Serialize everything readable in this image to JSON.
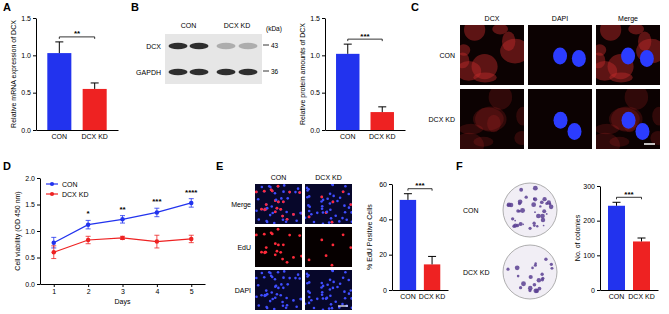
{
  "chart_data": [
    {
      "type": "bar",
      "y_label": "Relative mRNA expression of DCX",
      "categories": [
        "CON",
        "DCX KD"
      ],
      "values": [
        1.03,
        0.55
      ],
      "errors": [
        0.15,
        0.08
      ],
      "colors": [
        "#2233ee",
        "#ee2222"
      ],
      "ylim": [
        0,
        1.5
      ],
      "yticks": [
        {
          "value": 0,
          "label": "0.0"
        },
        0.5,
        {
          "value": 1,
          "label": "1.0"
        },
        1.5
      ],
      "annotations": [
        "**"
      ]
    },
    {
      "type": "bar",
      "y_label": "Relative protein amounts of DCX",
      "categories": [
        "CON",
        "DCX KD"
      ],
      "values": [
        1.02,
        0.24
      ],
      "errors": [
        0.13,
        0.07
      ],
      "colors": [
        "#2233ee",
        "#ee2222"
      ],
      "ylim": [
        0,
        1.5
      ],
      "yticks": [
        {
          "value": 0,
          "label": "0.0"
        },
        0.5,
        {
          "value": 1,
          "label": "1.0"
        },
        1.5
      ],
      "annotations": [
        "***"
      ]
    },
    {
      "type": "line",
      "x_label": "Days",
      "y_label": "Cell viability (OD 450 nm)",
      "x": [
        1,
        2,
        3,
        4,
        5
      ],
      "xlim": [
        0.6,
        5.4
      ],
      "xticks": [
        1,
        2,
        3,
        4,
        5
      ],
      "ylim": [
        0,
        2
      ],
      "yticks": [
        {
          "value": 0,
          "label": "0.0"
        },
        0.5,
        {
          "value": 1,
          "label": "1.0"
        },
        1.5,
        {
          "value": 2,
          "label": "2.0"
        }
      ],
      "legend": "upper left",
      "series": [
        {
          "name": "CON",
          "color": "#2233ee",
          "marker": "circle",
          "values": [
            0.78,
            1.12,
            1.22,
            1.35,
            1.53
          ],
          "errors": [
            0.1,
            0.08,
            0.07,
            0.08,
            0.08
          ]
        },
        {
          "name": "DCX KD",
          "color": "#ee2222",
          "marker": "circle",
          "values": [
            0.6,
            0.83,
            0.87,
            0.8,
            0.85
          ],
          "errors": [
            0.12,
            0.07,
            0.03,
            0.12,
            0.07
          ]
        }
      ],
      "annotations": [
        {
          "x": 2,
          "text": "*"
        },
        {
          "x": 3,
          "text": "**"
        },
        {
          "x": 4,
          "text": "***"
        },
        {
          "x": 5,
          "text": "****"
        }
      ]
    },
    {
      "type": "bar",
      "y_label": "% EdU Positive Cells",
      "categories": [
        "CON",
        "DCX KD"
      ],
      "values": [
        51,
        14.5
      ],
      "errors": [
        3.5,
        4.5
      ],
      "colors": [
        "#2233ee",
        "#ee2222"
      ],
      "ylim": [
        0,
        60
      ],
      "yticks": [
        0,
        20,
        40,
        60
      ],
      "annotations": [
        "***"
      ]
    },
    {
      "type": "bar",
      "y_label": "No. of colonies",
      "categories": [
        "CON",
        "DCX KD"
      ],
      "values": [
        243,
        140
      ],
      "errors": [
        10,
        10
      ],
      "colors": [
        "#2233ee",
        "#ee2222"
      ],
      "ylim": [
        0,
        300
      ],
      "yticks": [
        0,
        100,
        200,
        300
      ],
      "annotations": [
        "***"
      ]
    }
  ],
  "figure": {
    "panel_labels": [
      "A",
      "B",
      "C",
      "D",
      "E",
      "F"
    ],
    "blot": {
      "columns": [
        "CON",
        "DCX KD"
      ],
      "rows": [
        "DCX",
        "GAPDH"
      ],
      "unit": "(kDa)",
      "sizes": [
        43,
        36
      ]
    },
    "panel_c": {
      "columns": [
        "DCX",
        "DAPI",
        "Merge"
      ],
      "rows": [
        "CON",
        "DCX KD"
      ]
    },
    "panel_e": {
      "columns": [
        "CON",
        "DCX KD"
      ],
      "rows": [
        "Merge",
        "EdU",
        "DAPI"
      ]
    },
    "panel_f": {
      "rows": [
        "CON",
        "DCX KD"
      ]
    }
  }
}
